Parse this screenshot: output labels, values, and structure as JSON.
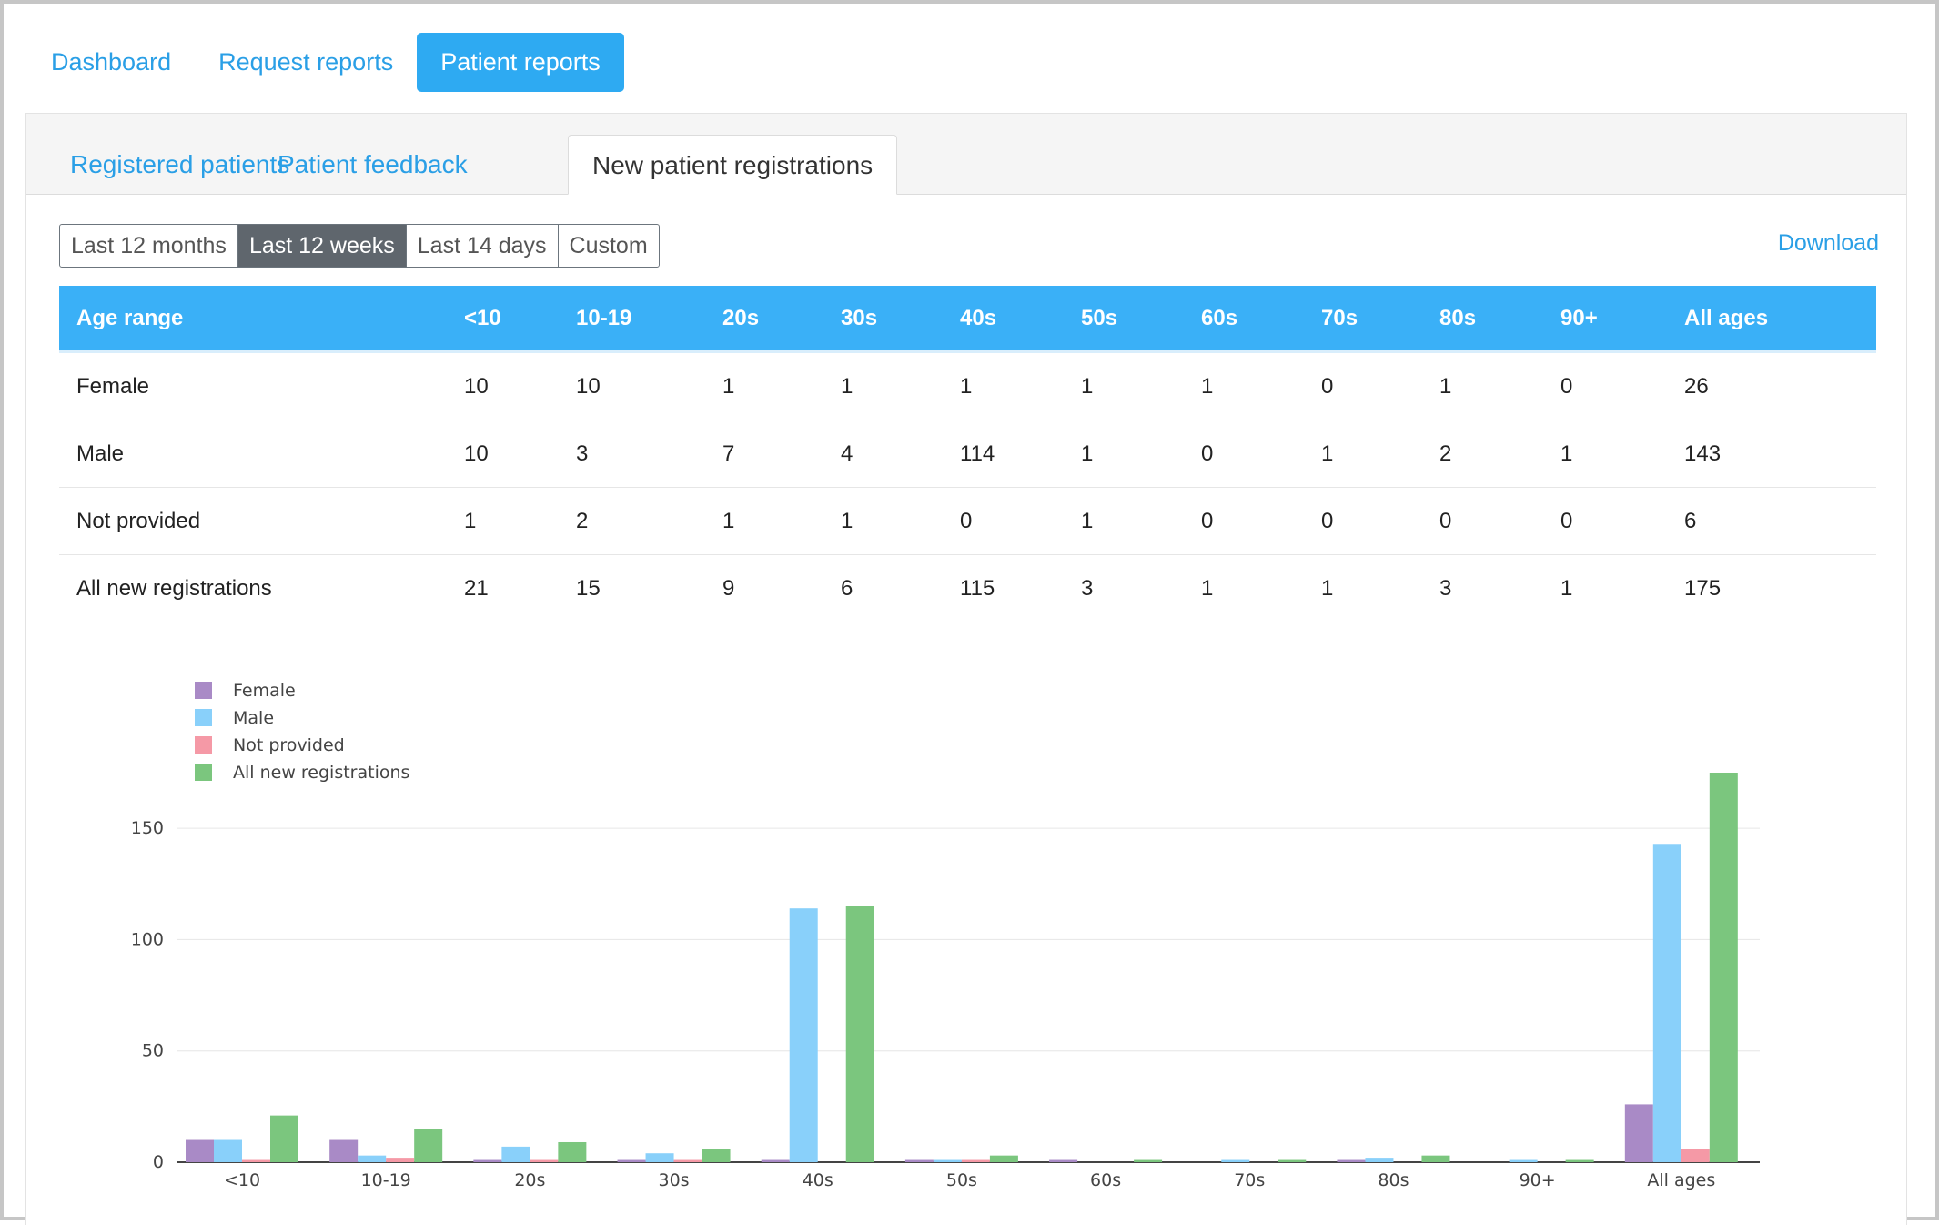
{
  "nav": {
    "items": [
      "Dashboard",
      "Request reports",
      "Patient reports"
    ],
    "active": 2
  },
  "tabs": {
    "items": [
      "Registered patients",
      "Patient feedback",
      "New patient registrations"
    ],
    "active": 2
  },
  "range": {
    "items": [
      "Last 12 months",
      "Last 12 weeks",
      "Last 14 days",
      "Custom"
    ],
    "active": 1
  },
  "download_label": "Download",
  "table": {
    "header": [
      "Age range",
      "<10",
      "10-19",
      "20s",
      "30s",
      "40s",
      "50s",
      "60s",
      "70s",
      "80s",
      "90+",
      "All ages"
    ],
    "rows": [
      [
        "Female",
        "10",
        "10",
        "1",
        "1",
        "1",
        "1",
        "1",
        "0",
        "1",
        "0",
        "26"
      ],
      [
        "Male",
        "10",
        "3",
        "7",
        "4",
        "114",
        "1",
        "0",
        "1",
        "2",
        "1",
        "143"
      ],
      [
        "Not provided",
        "1",
        "2",
        "1",
        "1",
        "0",
        "1",
        "0",
        "0",
        "0",
        "0",
        "6"
      ],
      [
        "All new registrations",
        "21",
        "15",
        "9",
        "6",
        "115",
        "3",
        "1",
        "1",
        "3",
        "1",
        "175"
      ]
    ]
  },
  "chart_data": {
    "type": "bar",
    "categories": [
      "<10",
      "10-19",
      "20s",
      "30s",
      "40s",
      "50s",
      "60s",
      "70s",
      "80s",
      "90+",
      "All ages"
    ],
    "series": [
      {
        "name": "Female",
        "color": "#a98ac6",
        "values": [
          10,
          10,
          1,
          1,
          1,
          1,
          1,
          0,
          1,
          0,
          26
        ]
      },
      {
        "name": "Male",
        "color": "#89d0fa",
        "values": [
          10,
          3,
          7,
          4,
          114,
          1,
          0,
          1,
          2,
          1,
          143
        ]
      },
      {
        "name": "Not provided",
        "color": "#f599a6",
        "values": [
          1,
          2,
          1,
          1,
          0,
          1,
          0,
          0,
          0,
          0,
          6
        ]
      },
      {
        "name": "All new registrations",
        "color": "#7bc67e",
        "values": [
          21,
          15,
          9,
          6,
          115,
          3,
          1,
          1,
          3,
          1,
          175
        ]
      }
    ],
    "yticks": [
      0,
      50,
      100,
      150
    ],
    "ylim": [
      0,
      175
    ],
    "grid": true,
    "legend": "top-left"
  }
}
